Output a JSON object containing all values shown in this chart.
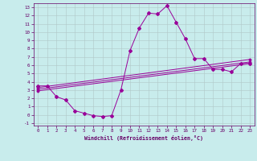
{
  "title": "",
  "xlabel": "Windchill (Refroidissement éolien,°C)",
  "ylabel": "",
  "bg_color": "#c8ecec",
  "line_color": "#990099",
  "grid_color": "#b0c8c8",
  "xlim": [
    -0.5,
    23.5
  ],
  "ylim": [
    -1.3,
    13.5
  ],
  "xticks": [
    0,
    1,
    2,
    3,
    4,
    5,
    6,
    7,
    8,
    9,
    10,
    11,
    12,
    13,
    14,
    15,
    16,
    17,
    18,
    19,
    20,
    21,
    22,
    23
  ],
  "yticks": [
    -1,
    0,
    1,
    2,
    3,
    4,
    5,
    6,
    7,
    8,
    9,
    10,
    11,
    12,
    13
  ],
  "main_line": {
    "x": [
      0,
      1,
      2,
      3,
      4,
      5,
      6,
      7,
      8,
      9,
      10,
      11,
      12,
      13,
      14,
      15,
      16,
      17,
      18,
      19,
      20,
      21,
      22,
      23
    ],
    "y": [
      3.5,
      3.5,
      2.2,
      1.8,
      0.5,
      0.2,
      -0.1,
      -0.2,
      -0.1,
      3.0,
      7.8,
      10.5,
      12.3,
      12.2,
      13.2,
      11.2,
      9.2,
      6.8,
      6.8,
      5.5,
      5.5,
      5.2,
      6.2,
      6.2
    ]
  },
  "trend_lines": [
    {
      "x": [
        0,
        23
      ],
      "y": [
        3.3,
        6.7
      ]
    },
    {
      "x": [
        0,
        23
      ],
      "y": [
        3.1,
        6.4
      ]
    },
    {
      "x": [
        0,
        23
      ],
      "y": [
        2.9,
        6.2
      ]
    }
  ]
}
